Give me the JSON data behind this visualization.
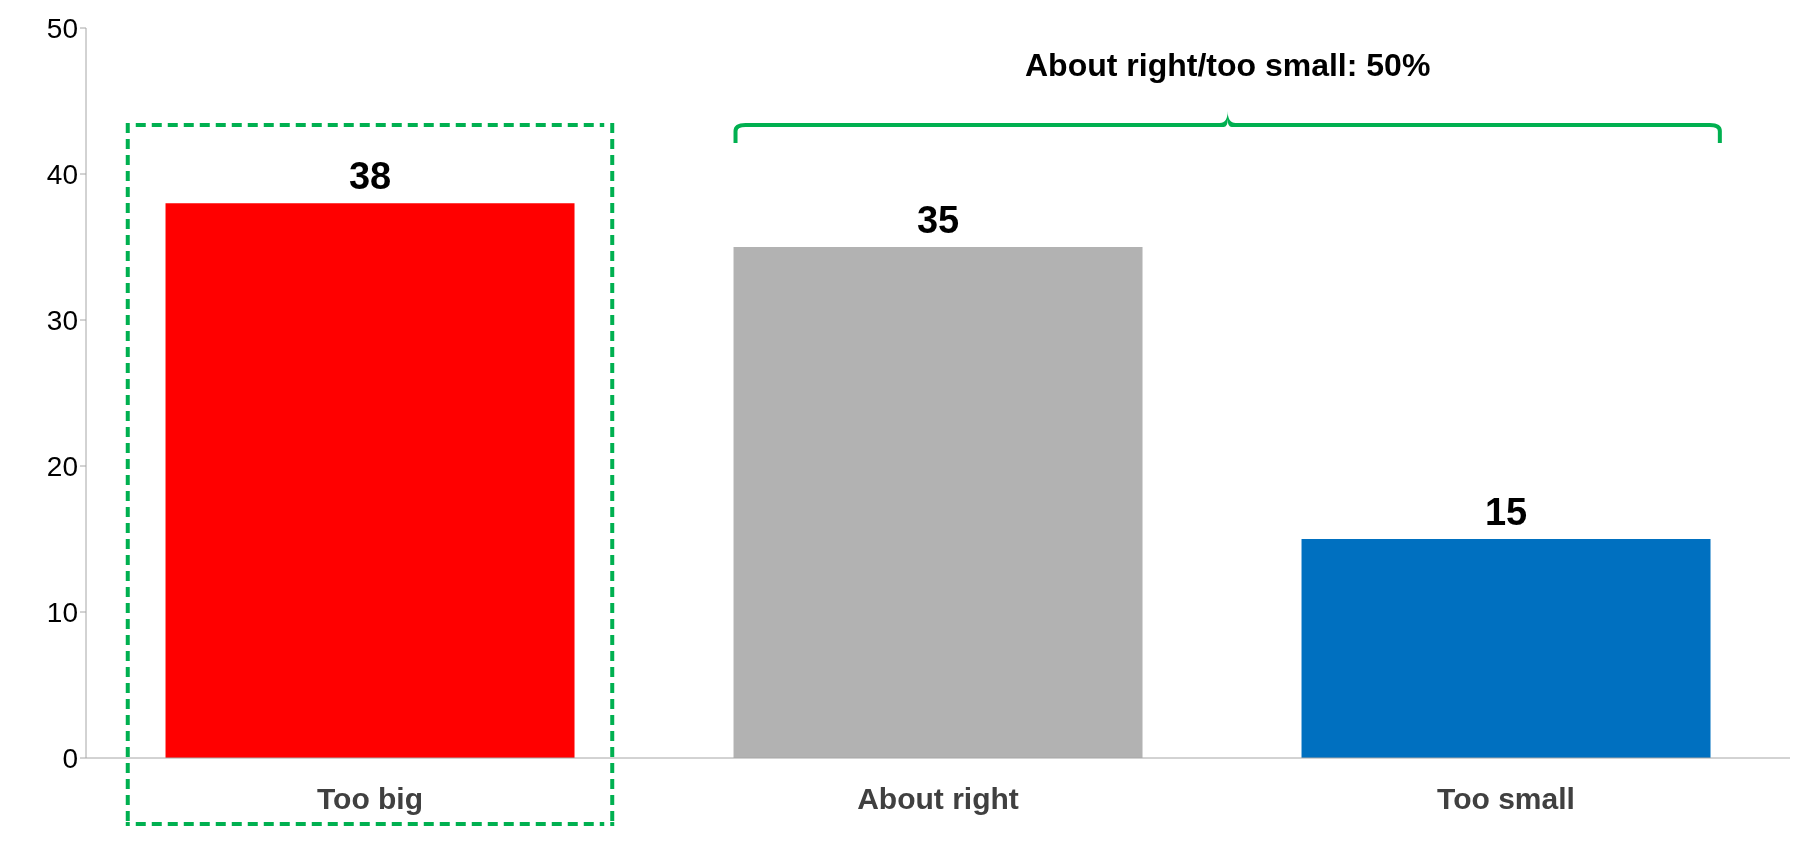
{
  "chart_data": {
    "type": "bar",
    "categories": [
      "Too big",
      "About right",
      "Too small"
    ],
    "values": [
      38,
      35,
      15
    ],
    "colors": [
      "#ff0000",
      "#b2b2b2",
      "#0070c0"
    ],
    "ylim": [
      0,
      50
    ],
    "yticks": [
      0,
      10,
      20,
      30,
      40,
      50
    ],
    "grid": false,
    "legend": false,
    "data_labels": true,
    "annotations": [
      "About right/too small: 50%"
    ]
  }
}
